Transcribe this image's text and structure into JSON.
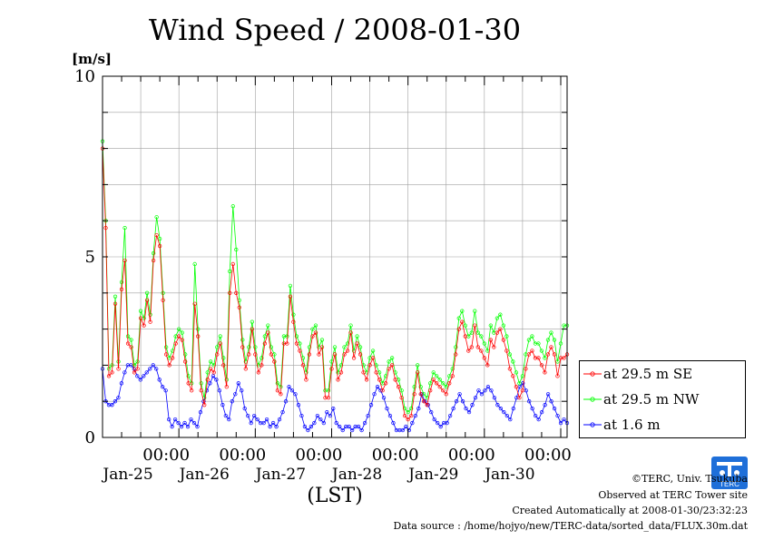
{
  "chart_data": {
    "type": "line",
    "title": "Wind Speed / 2008-01-30",
    "ylabel": "[m/s]",
    "xlabel": "(LST)",
    "ylim": [
      0,
      10
    ],
    "y_ticks": [
      "0",
      "5",
      "10"
    ],
    "x_range_hours": [
      0,
      146
    ],
    "midnight_label": "00:00",
    "day_labels": [
      "Jan-25",
      "Jan-26",
      "Jan-27",
      "Jan-28",
      "Jan-29",
      "Jan-30"
    ],
    "grid": true,
    "legend_position": "right",
    "series": [
      {
        "name": "at 29.5 m SE",
        "color": "#ff0000",
        "values": [
          8.0,
          5.8,
          1.7,
          1.8,
          3.7,
          1.9,
          4.1,
          4.9,
          2.6,
          2.5,
          1.8,
          1.9,
          3.3,
          3.1,
          3.8,
          3.2,
          4.9,
          5.6,
          5.3,
          3.8,
          2.3,
          2.0,
          2.2,
          2.6,
          2.8,
          2.7,
          2.1,
          1.5,
          1.3,
          3.7,
          2.8,
          1.3,
          0.9,
          1.6,
          1.9,
          1.8,
          2.3,
          2.6,
          2.0,
          1.4,
          4.0,
          4.8,
          4.0,
          3.6,
          2.5,
          1.9,
          2.3,
          3.0,
          2.3,
          1.8,
          2.0,
          2.6,
          2.9,
          2.3,
          2.1,
          1.3,
          1.2,
          2.6,
          2.6,
          3.9,
          3.2,
          2.6,
          2.4,
          2.0,
          1.6,
          2.3,
          2.8,
          2.9,
          2.3,
          2.5,
          1.1,
          1.1,
          1.9,
          2.3,
          1.6,
          1.8,
          2.3,
          2.4,
          2.9,
          2.2,
          2.6,
          2.3,
          1.8,
          1.6,
          2.0,
          2.2,
          1.8,
          1.6,
          1.3,
          1.5,
          1.9,
          2.0,
          1.6,
          1.4,
          1.1,
          0.6,
          0.5,
          0.6,
          1.2,
          1.8,
          1.2,
          1.0,
          0.9,
          1.3,
          1.6,
          1.5,
          1.4,
          1.3,
          1.2,
          1.5,
          1.7,
          2.3,
          3.0,
          3.2,
          2.8,
          2.4,
          2.5,
          3.1,
          2.5,
          2.4,
          2.2,
          2.0,
          2.7,
          2.5,
          2.9,
          3.0,
          2.7,
          2.4,
          1.9,
          1.7,
          1.4,
          1.1,
          1.3,
          1.9,
          2.3,
          2.4,
          2.2,
          2.2,
          2.0,
          1.8,
          2.3,
          2.5,
          2.3,
          1.7,
          2.2,
          2.2,
          2.3
        ]
      },
      {
        "name": "at 29.5 m NW",
        "color": "#00ff00",
        "values": [
          8.2,
          6.0,
          1.9,
          2.0,
          3.9,
          2.1,
          4.3,
          5.8,
          2.8,
          2.7,
          2.0,
          2.1,
          3.5,
          3.3,
          4.0,
          3.4,
          5.1,
          6.1,
          5.5,
          4.0,
          2.5,
          2.2,
          2.4,
          2.8,
          3.0,
          2.9,
          2.3,
          1.7,
          1.5,
          4.8,
          3.0,
          1.5,
          1.1,
          1.8,
          2.1,
          2.0,
          2.5,
          2.8,
          2.2,
          1.6,
          4.6,
          6.4,
          5.2,
          3.8,
          2.7,
          2.1,
          2.5,
          3.2,
          2.5,
          2.0,
          2.2,
          2.8,
          3.1,
          2.5,
          2.3,
          1.5,
          1.4,
          2.8,
          2.8,
          4.2,
          3.4,
          2.8,
          2.6,
          2.2,
          1.8,
          2.5,
          3.0,
          3.1,
          2.5,
          2.7,
          1.3,
          1.3,
          2.1,
          2.5,
          1.8,
          2.0,
          2.5,
          2.6,
          3.1,
          2.4,
          2.8,
          2.5,
          2.0,
          1.8,
          2.2,
          2.4,
          2.0,
          1.8,
          1.5,
          1.7,
          2.1,
          2.2,
          1.8,
          1.6,
          1.3,
          0.8,
          0.7,
          0.8,
          1.4,
          2.0,
          1.4,
          1.2,
          1.1,
          1.5,
          1.8,
          1.7,
          1.6,
          1.5,
          1.4,
          1.7,
          1.9,
          2.5,
          3.3,
          3.5,
          3.1,
          2.8,
          2.9,
          3.5,
          2.9,
          2.8,
          2.6,
          2.4,
          3.1,
          2.9,
          3.3,
          3.4,
          3.1,
          2.8,
          2.3,
          2.1,
          1.8,
          1.5,
          1.7,
          2.3,
          2.7,
          2.8,
          2.6,
          2.6,
          2.4,
          2.2,
          2.7,
          2.9,
          2.7,
          2.1,
          2.6,
          3.1,
          3.1
        ]
      },
      {
        "name": "at 1.6 m",
        "color": "#0000ff",
        "values": [
          1.9,
          1.0,
          0.9,
          0.9,
          1.0,
          1.1,
          1.5,
          1.8,
          2.0,
          2.0,
          1.9,
          1.7,
          1.6,
          1.7,
          1.8,
          1.9,
          2.0,
          1.9,
          1.6,
          1.4,
          1.3,
          0.5,
          0.3,
          0.5,
          0.4,
          0.3,
          0.4,
          0.3,
          0.5,
          0.4,
          0.3,
          0.7,
          1.0,
          1.3,
          1.5,
          1.7,
          1.6,
          1.3,
          0.9,
          0.6,
          0.5,
          1.0,
          1.2,
          1.5,
          1.3,
          0.8,
          0.6,
          0.4,
          0.6,
          0.5,
          0.4,
          0.4,
          0.5,
          0.3,
          0.4,
          0.3,
          0.5,
          0.7,
          1.0,
          1.4,
          1.3,
          1.2,
          0.9,
          0.6,
          0.3,
          0.2,
          0.3,
          0.4,
          0.6,
          0.5,
          0.4,
          0.7,
          0.6,
          0.8,
          0.4,
          0.3,
          0.2,
          0.3,
          0.3,
          0.2,
          0.3,
          0.3,
          0.2,
          0.4,
          0.6,
          0.9,
          1.2,
          1.4,
          1.3,
          1.1,
          0.8,
          0.6,
          0.4,
          0.2,
          0.2,
          0.2,
          0.3,
          0.2,
          0.4,
          0.6,
          0.8,
          1.2,
          1.0,
          0.9,
          0.7,
          0.5,
          0.4,
          0.3,
          0.4,
          0.4,
          0.6,
          0.8,
          1.0,
          1.2,
          1.0,
          0.8,
          0.7,
          0.9,
          1.1,
          1.3,
          1.2,
          1.3,
          1.4,
          1.3,
          1.1,
          0.9,
          0.8,
          0.7,
          0.6,
          0.5,
          0.8,
          1.1,
          1.4,
          1.5,
          1.3,
          1.0,
          0.8,
          0.6,
          0.5,
          0.7,
          0.9,
          1.2,
          1.0,
          0.8,
          0.6,
          0.4,
          0.5,
          0.4
        ]
      }
    ]
  },
  "credits": {
    "copyright": "©TERC, Univ. Tsukuba",
    "site": "Observed at TERC Tower site",
    "created": "Created Automatically at 2008-01-30/23:32:23",
    "source": "Data source : /home/hojyo/new/TERC-data/sorted_data/FLUX.30m.dat"
  },
  "logo": {
    "text": "TERC",
    "color": "#1e6fd9"
  }
}
